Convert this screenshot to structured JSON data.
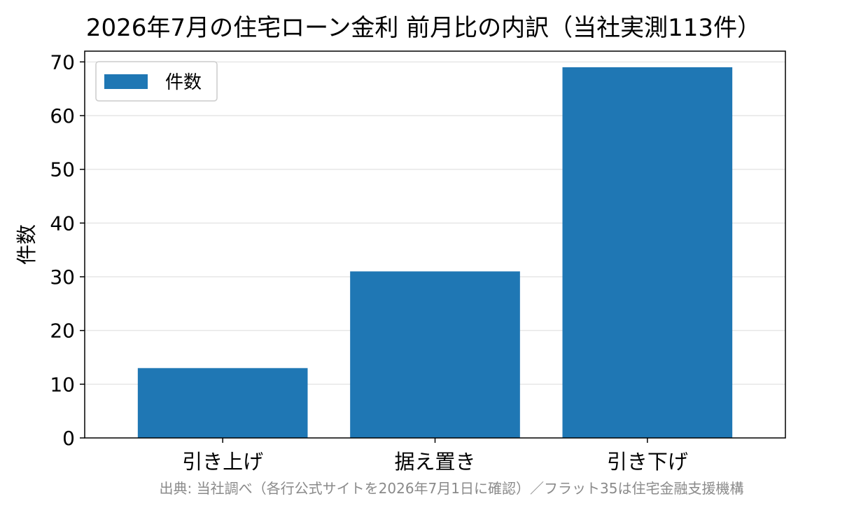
{
  "chart_data": {
    "type": "bar",
    "title": "2026年7月の住宅ローン金利 前月比の内訳（当社実測113件）",
    "categories": [
      "引き上げ",
      "据え置き",
      "引き下げ"
    ],
    "series": [
      {
        "name": "件数",
        "values": [
          13,
          31,
          69
        ],
        "color": "#1f77b4"
      }
    ],
    "xlabel": "",
    "ylabel": "件数",
    "ylim": [
      0,
      72
    ],
    "yticks": [
      0,
      10,
      20,
      30,
      40,
      50,
      60,
      70
    ],
    "grid": "y",
    "legend": "top-left",
    "source": "出典: 当社調べ（各行公式サイトを2026年7月1日に確認）／フラット35は住宅金融支援機構"
  }
}
